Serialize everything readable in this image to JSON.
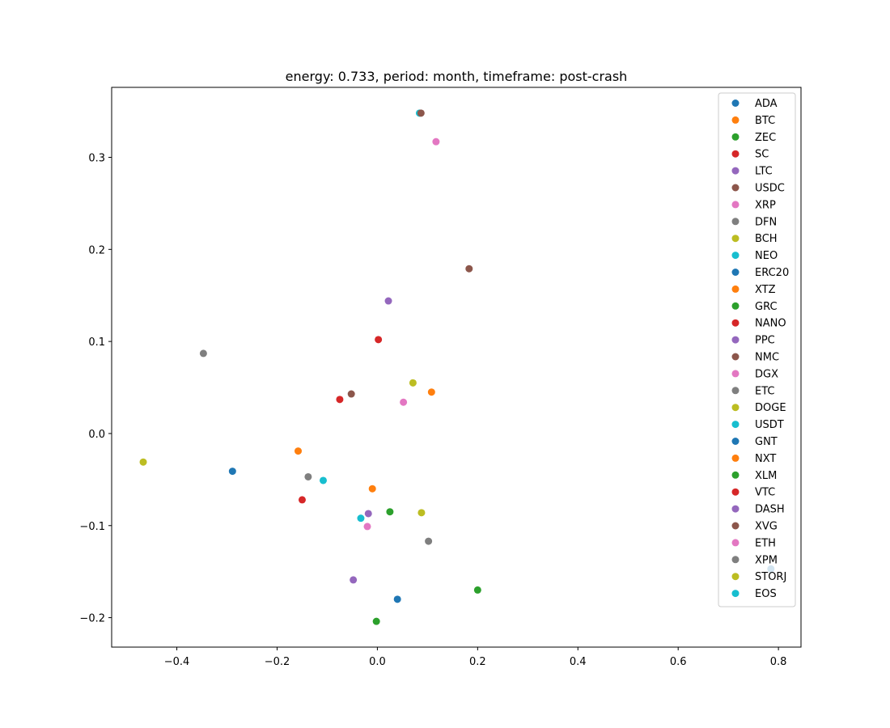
{
  "chart_data": {
    "type": "scatter",
    "title": "energy: 0.733, period: month, timeframe: post-crash",
    "xlabel": "",
    "ylabel": "",
    "xlim": [
      -0.53,
      0.845
    ],
    "ylim": [
      -0.232,
      0.376
    ],
    "x_ticks": [
      -0.4,
      -0.2,
      0.0,
      0.2,
      0.4,
      0.6,
      0.8
    ],
    "y_ticks": [
      -0.2,
      -0.1,
      0.0,
      0.1,
      0.2,
      0.3
    ],
    "x_tick_labels": [
      "−0.4",
      "−0.2",
      "0.0",
      "0.2",
      "0.4",
      "0.6",
      "0.8"
    ],
    "y_tick_labels": [
      "−0.2",
      "−0.1",
      "0.0",
      "0.1",
      "0.2",
      "0.3"
    ],
    "grid": false,
    "legend_position": "top-right",
    "series": [
      {
        "name": "ADA",
        "color": "#1f77b4",
        "x": 0.785,
        "y": -0.147
      },
      {
        "name": "BTC",
        "color": "#ff7f0e",
        "x": 0.108,
        "y": 0.045
      },
      {
        "name": "ZEC",
        "color": "#2ca02c",
        "x": 0.2,
        "y": -0.17
      },
      {
        "name": "SC",
        "color": "#d62728",
        "x": -0.075,
        "y": 0.037
      },
      {
        "name": "LTC",
        "color": "#9467bd",
        "x": 0.022,
        "y": 0.144
      },
      {
        "name": "USDC",
        "color": "#8c564b",
        "x": 0.183,
        "y": 0.179
      },
      {
        "name": "XRP",
        "color": "#e377c2",
        "x": 0.117,
        "y": 0.317
      },
      {
        "name": "DFN",
        "color": "#7f7f7f",
        "x": 0.102,
        "y": -0.117
      },
      {
        "name": "BCH",
        "color": "#bcbd22",
        "x": 0.071,
        "y": 0.055
      },
      {
        "name": "NEO",
        "color": "#17becf",
        "x": 0.084,
        "y": 0.348
      },
      {
        "name": "ERC20",
        "color": "#1f77b4",
        "x": -0.289,
        "y": -0.041
      },
      {
        "name": "XTZ",
        "color": "#ff7f0e",
        "x": -0.158,
        "y": -0.019
      },
      {
        "name": "GRC",
        "color": "#2ca02c",
        "x": 0.025,
        "y": -0.085
      },
      {
        "name": "NANO",
        "color": "#d62728",
        "x": 0.002,
        "y": 0.102
      },
      {
        "name": "PPC",
        "color": "#9467bd",
        "x": -0.048,
        "y": -0.159
      },
      {
        "name": "NMC",
        "color": "#8c564b",
        "x": 0.087,
        "y": 0.348
      },
      {
        "name": "DGX",
        "color": "#e377c2",
        "x": 0.052,
        "y": 0.034
      },
      {
        "name": "ETC",
        "color": "#7f7f7f",
        "x": -0.347,
        "y": 0.087
      },
      {
        "name": "DOGE",
        "color": "#bcbd22",
        "x": -0.467,
        "y": -0.031
      },
      {
        "name": "USDT",
        "color": "#17becf",
        "x": -0.108,
        "y": -0.051
      },
      {
        "name": "GNT",
        "color": "#1f77b4",
        "x": 0.04,
        "y": -0.18
      },
      {
        "name": "NXT",
        "color": "#ff7f0e",
        "x": -0.01,
        "y": -0.06
      },
      {
        "name": "XLM",
        "color": "#2ca02c",
        "x": -0.002,
        "y": -0.204
      },
      {
        "name": "VTC",
        "color": "#d62728",
        "x": -0.15,
        "y": -0.072
      },
      {
        "name": "DASH",
        "color": "#9467bd",
        "x": -0.018,
        "y": -0.087
      },
      {
        "name": "XVG",
        "color": "#8c564b",
        "x": -0.052,
        "y": 0.043
      },
      {
        "name": "ETH",
        "color": "#e377c2",
        "x": -0.02,
        "y": -0.101
      },
      {
        "name": "XPM",
        "color": "#7f7f7f",
        "x": -0.138,
        "y": -0.047
      },
      {
        "name": "STORJ",
        "color": "#bcbd22",
        "x": 0.088,
        "y": -0.086
      },
      {
        "name": "EOS",
        "color": "#17becf",
        "x": -0.033,
        "y": -0.092
      }
    ]
  }
}
